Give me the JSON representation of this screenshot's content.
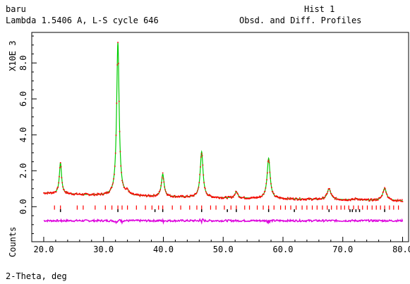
{
  "header": {
    "left_line1": "baru",
    "left_line2": "Lambda 1.5406 A, L-S cycle  646",
    "right_line1": "Hist  1",
    "right_line2": "Obsd. and Diff. Profiles"
  },
  "chart_data": {
    "type": "line",
    "xlabel": "2-Theta, deg",
    "ylabel_counts": "Counts",
    "ylabel_scale": "X10E  3",
    "xlim": [
      18.0,
      81.0
    ],
    "ylim": [
      -1.95,
      9.7
    ],
    "x_ticks": [
      20.0,
      30.0,
      40.0,
      50.0,
      60.0,
      70.0,
      80.0
    ],
    "x_tick_labels": [
      "20.0",
      "30.0",
      "40.0",
      "50.0",
      "60.0",
      "70.0",
      "80.0"
    ],
    "y_ticks": [
      0.0,
      2.0,
      4.0,
      6.0,
      8.0
    ],
    "y_tick_labels": [
      "0.0",
      "2.0",
      "4.0",
      "6.0",
      "8.0"
    ],
    "x_range_data": [
      20.0,
      80.0
    ],
    "background": {
      "x": [
        20.0,
        30.0,
        40.0,
        50.0,
        60.0,
        70.0,
        80.0
      ],
      "y": [
        0.75,
        0.62,
        0.55,
        0.48,
        0.43,
        0.38,
        0.32
      ]
    },
    "peaks": [
      {
        "x": 22.8,
        "height": 1.75,
        "width": 0.22
      },
      {
        "x": 32.4,
        "height": 8.55,
        "width": 0.25
      },
      {
        "x": 34.0,
        "height": 0.2,
        "width": 0.25
      },
      {
        "x": 39.9,
        "height": 1.25,
        "width": 0.27
      },
      {
        "x": 46.4,
        "height": 2.55,
        "width": 0.28
      },
      {
        "x": 52.2,
        "height": 0.35,
        "width": 0.3
      },
      {
        "x": 57.6,
        "height": 2.25,
        "width": 0.3
      },
      {
        "x": 67.7,
        "height": 0.6,
        "width": 0.38
      },
      {
        "x": 72.3,
        "height": 0.08,
        "width": 0.35
      },
      {
        "x": 77.0,
        "height": 0.68,
        "width": 0.38
      }
    ],
    "reflections_red": [
      21.8,
      22.8,
      25.6,
      26.6,
      28.6,
      30.3,
      31.4,
      32.4,
      33.1,
      34.0,
      35.5,
      37.0,
      38.1,
      39.2,
      39.9,
      41.5,
      42.9,
      44.4,
      45.6,
      46.4,
      47.9,
      48.8,
      50.2,
      51.3,
      52.2,
      53.6,
      54.4,
      55.7,
      56.7,
      57.6,
      58.5,
      59.6,
      60.4,
      61.3,
      62.2,
      63.2,
      64.0,
      64.9,
      65.7,
      66.6,
      67.4,
      68.1,
      69.0,
      69.7,
      70.3,
      71.0,
      71.8,
      72.6,
      73.3,
      74.1,
      74.9,
      75.6,
      76.3,
      77.0,
      77.8,
      78.5,
      79.3
    ],
    "reflections_black": [
      22.8,
      32.4,
      38.6,
      39.9,
      46.4,
      50.7,
      52.2,
      57.6,
      61.9,
      67.7,
      71.2,
      71.6,
      72.2,
      72.8,
      77.0
    ],
    "diff_level": -0.78,
    "colors": {
      "observed": "#ff0000",
      "calculated": "#00cc00",
      "difference": "#dd00dd",
      "refl_red": "#ff0000",
      "refl_black": "#000000",
      "axes": "#000000"
    }
  }
}
